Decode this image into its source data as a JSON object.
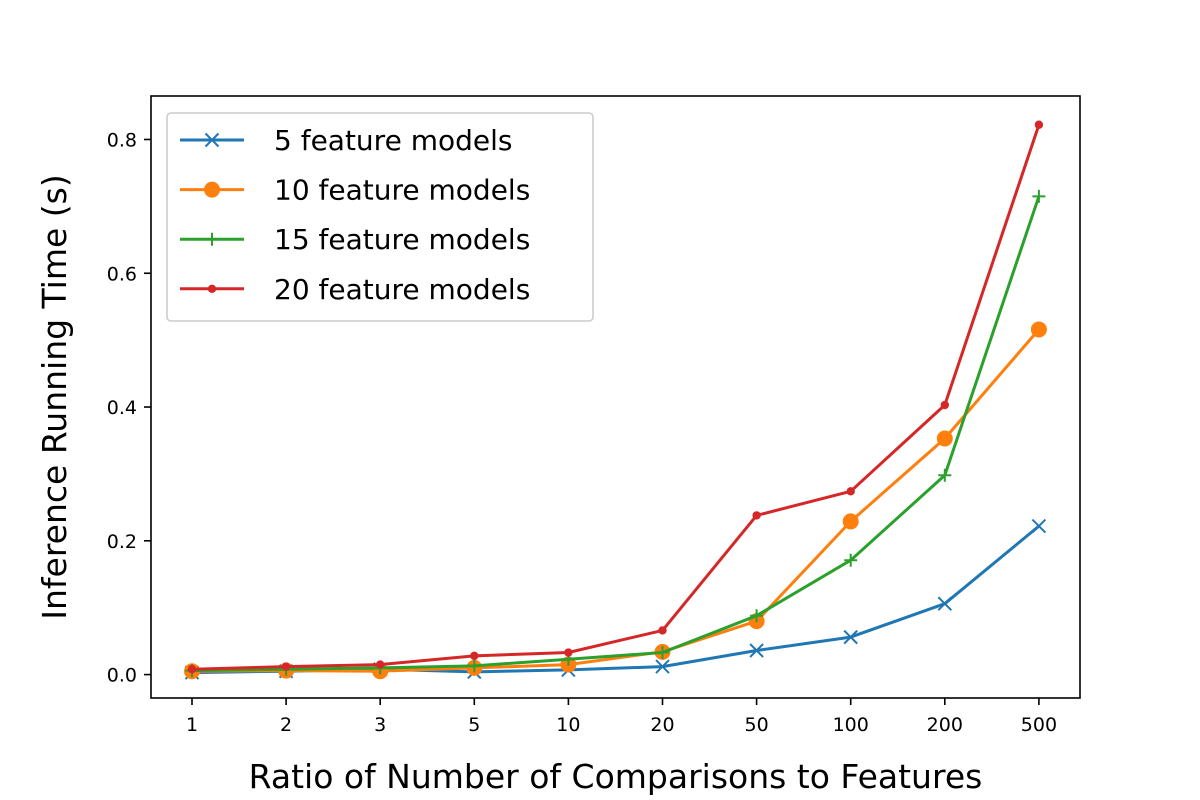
{
  "chart_data": {
    "type": "line",
    "title": "",
    "xlabel": "Ratio of Number of Comparisons to Features",
    "ylabel": "Inference Running Time (s)",
    "x_scale": "categorical",
    "categories": [
      "1",
      "2",
      "3",
      "5",
      "10",
      "20",
      "50",
      "100",
      "200",
      "500"
    ],
    "ylim": [
      -0.035,
      0.865
    ],
    "y_ticks": [
      0.0,
      0.2,
      0.4,
      0.6,
      0.8
    ],
    "y_tick_labels": [
      "0.0",
      "0.2",
      "0.4",
      "0.6",
      "0.8"
    ],
    "grid": false,
    "legend_position": "top-left",
    "series": [
      {
        "name": "5 feature models",
        "color": "#1f77b4",
        "marker": "x",
        "values": [
          0.003,
          0.005,
          0.008,
          0.004,
          0.007,
          0.012,
          0.036,
          0.056,
          0.106,
          0.222
        ]
      },
      {
        "name": "10 feature models",
        "color": "#ff7f0e",
        "marker": "circle",
        "values": [
          0.005,
          0.006,
          0.005,
          0.01,
          0.015,
          0.034,
          0.08,
          0.229,
          0.353,
          0.516
        ]
      },
      {
        "name": "15 feature models",
        "color": "#2ca02c",
        "marker": "plus",
        "values": [
          0.006,
          0.008,
          0.01,
          0.013,
          0.023,
          0.033,
          0.088,
          0.171,
          0.298,
          0.715
        ]
      },
      {
        "name": "20 feature models",
        "color": "#d62728",
        "marker": "point",
        "values": [
          0.008,
          0.012,
          0.015,
          0.028,
          0.033,
          0.066,
          0.238,
          0.274,
          0.403,
          0.822
        ]
      }
    ]
  }
}
